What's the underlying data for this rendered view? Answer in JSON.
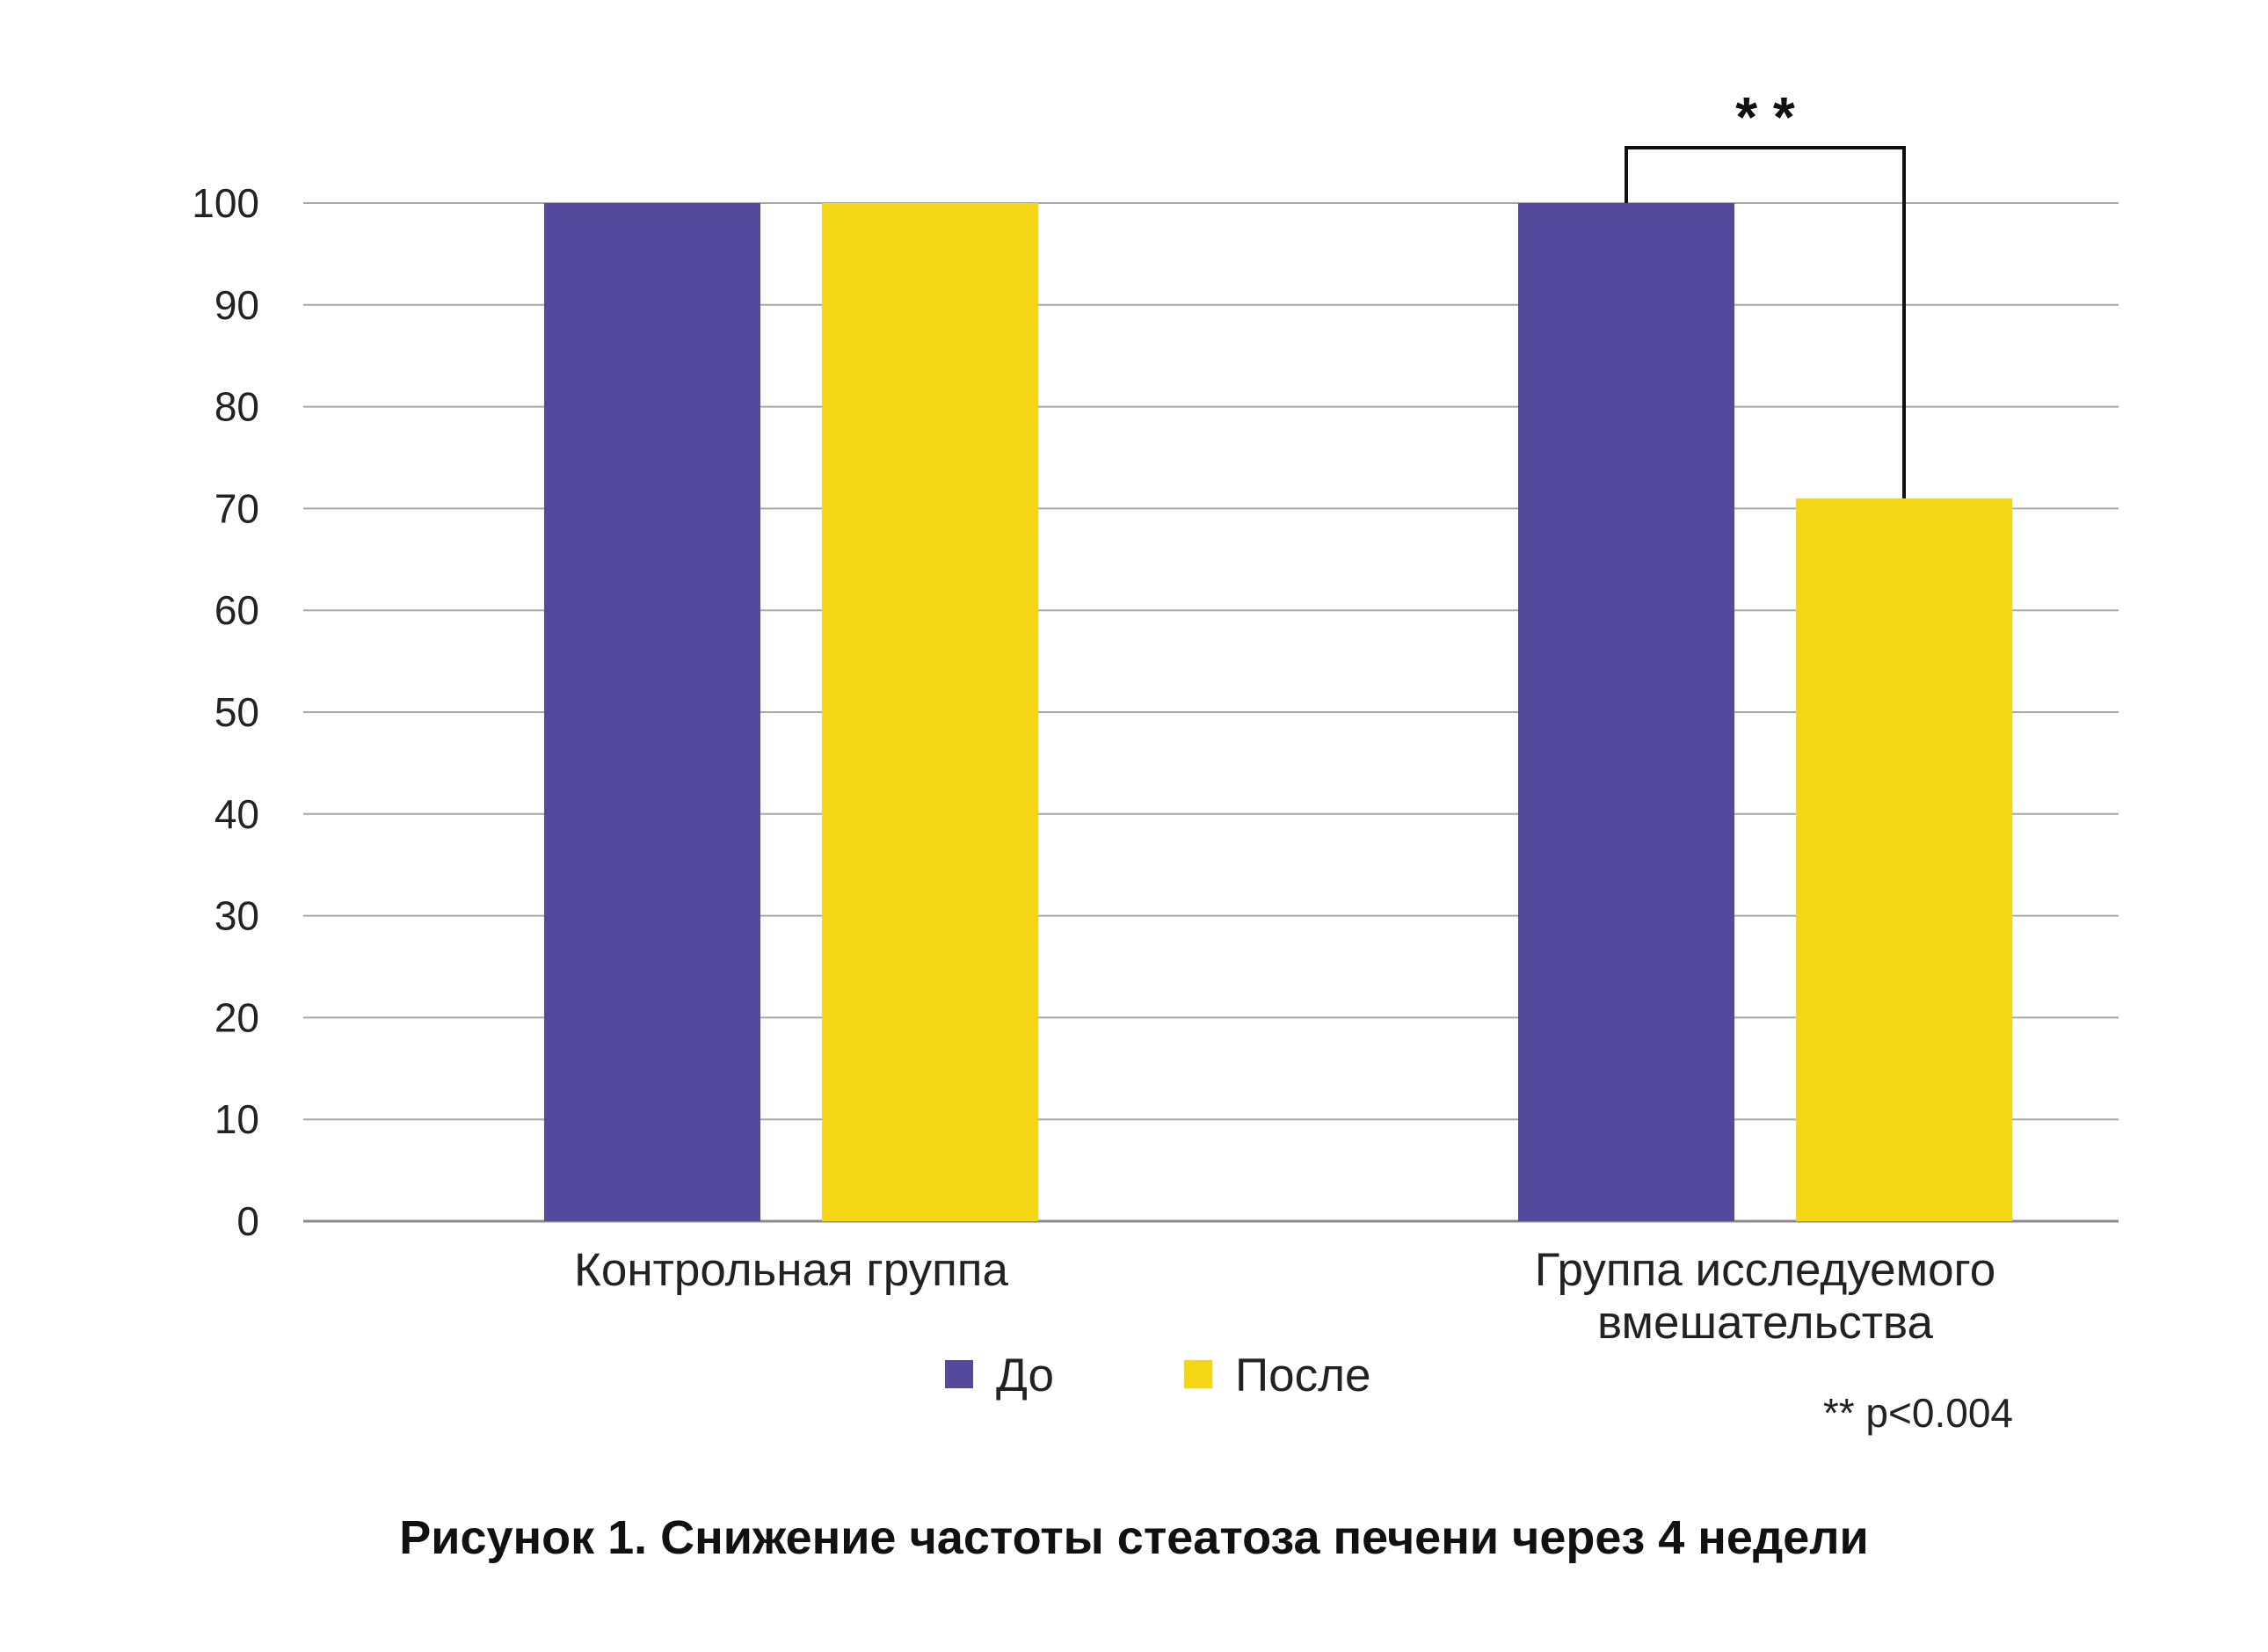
{
  "chart_data": {
    "type": "bar",
    "categories": [
      "Контрольная группа",
      "Группа исследуемого вмешательства"
    ],
    "categories_display": [
      [
        "Контрольная группа"
      ],
      [
        "Группа исследуемого",
        "вмешательства"
      ]
    ],
    "series": [
      {
        "name": "До",
        "values": [
          100,
          100
        ],
        "color": "#544a9c"
      },
      {
        "name": "После",
        "values": [
          100,
          71
        ],
        "color": "#f4d614"
      }
    ],
    "ylim": [
      0,
      100
    ],
    "yticks": [
      0,
      10,
      20,
      30,
      40,
      50,
      60,
      70,
      80,
      90,
      100
    ],
    "grid": true,
    "legend_position": "bottom",
    "significance": {
      "category_index": 1,
      "label": "* *"
    },
    "note": "** p<0.004",
    "title": "Рисунок 1. Снижение частоты стеатоза печени через 4 недели"
  }
}
